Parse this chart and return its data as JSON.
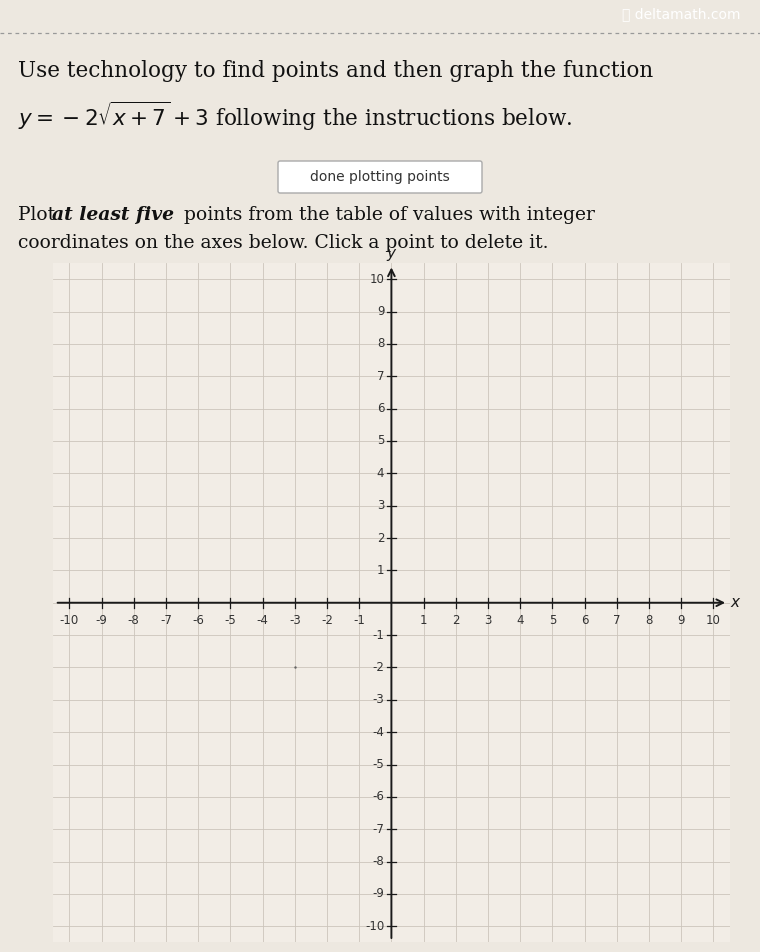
{
  "site_label": "⚿ deltamath.com",
  "title_line1": "Use technology to find points and then graph the function",
  "title_math": "$y = -2\\sqrt{x+7}+3$ following the instructions below.",
  "button_text": "done plotting points",
  "instr_pre": "Plot ",
  "instr_italic": "at least five",
  "instr_post": " points from the table of values with integer",
  "instr_line2": "coordinates on the axes below. Click a point to delete it.",
  "xmin": -10,
  "xmax": 10,
  "ymin": -10,
  "ymax": 10,
  "top_bar_color": "#636363",
  "top_bar_text_color": "#ffffff",
  "dotted_line_color": "#999999",
  "page_bg": "#ede8e0",
  "content_bg": "#f0ebe3",
  "graph_bg": "#f2ede6",
  "grid_color": "#ccc5bc",
  "axis_color": "#1a1a1a",
  "tick_label_color": "#333333",
  "text_color": "#111111",
  "button_bg": "#ffffff",
  "button_border": "#aaaaaa",
  "title_fontsize": 15.5,
  "instr_fontsize": 13.5,
  "tick_fontsize": 8.5,
  "button_fontsize": 10
}
